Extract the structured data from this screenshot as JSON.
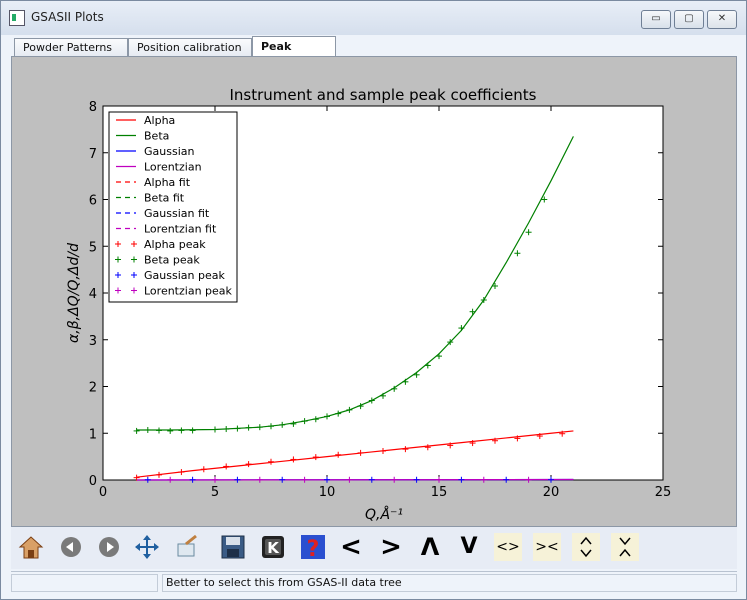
{
  "window": {
    "title": "GSASII Plots",
    "buttons": {
      "minimize": "▭",
      "maximize": "▢",
      "close": "✕"
    }
  },
  "tabs": [
    {
      "label": "Powder Patterns",
      "active": false
    },
    {
      "label": "Position calibration",
      "active": false
    },
    {
      "label": "Peak Widths",
      "active": true
    }
  ],
  "toolbar": {
    "icons": [
      "home-icon",
      "back-icon",
      "forward-icon",
      "pan-icon",
      "zoom-icon",
      "save-icon",
      "k-icon",
      "help-icon",
      "left-arrow-icon",
      "right-arrow-icon",
      "up-arrow-icon",
      "down-arrow-icon",
      "horizontal-spread-icon",
      "horizontal-compress-icon",
      "vertical-spread-icon",
      "vertical-compress-icon"
    ],
    "labels": {
      "left": "<",
      "right": ">",
      "up": "Λ",
      "down": "V",
      "hspread": "<>",
      "hcomp": "><",
      "help": "?"
    }
  },
  "status": {
    "message": "Better to select this from GSAS-II data tree"
  },
  "chart_data": {
    "type": "line",
    "title": "Instrument and sample peak coefficients",
    "xlabel": "Q,Å⁻¹",
    "ylabel": "α,β,ΔQ/Q,Δd/d",
    "xlim": [
      0,
      25
    ],
    "ylim": [
      0,
      8
    ],
    "xticks": [
      0,
      5,
      10,
      15,
      20,
      25
    ],
    "yticks": [
      0,
      1,
      2,
      3,
      4,
      5,
      6,
      7,
      8
    ],
    "legend_position": "top-left",
    "legend": [
      {
        "label": "Alpha",
        "style": "solid",
        "color": "#ff0000"
      },
      {
        "label": "Beta",
        "style": "solid",
        "color": "#008000"
      },
      {
        "label": "Gaussian",
        "style": "solid",
        "color": "#0000ff"
      },
      {
        "label": "Lorentzian",
        "style": "solid",
        "color": "#bf00bf"
      },
      {
        "label": "Alpha fit",
        "style": "dashed",
        "color": "#ff0000"
      },
      {
        "label": "Beta fit",
        "style": "dashed",
        "color": "#008000"
      },
      {
        "label": "Gaussian fit",
        "style": "dashed",
        "color": "#0000ff"
      },
      {
        "label": "Lorentzian fit",
        "style": "dashed",
        "color": "#bf00bf"
      },
      {
        "label": "Alpha peak",
        "style": "marker",
        "color": "#ff0000"
      },
      {
        "label": "Beta peak",
        "style": "marker",
        "color": "#008000"
      },
      {
        "label": "Gaussian peak",
        "style": "marker",
        "color": "#0000ff"
      },
      {
        "label": "Lorentzian peak",
        "style": "marker",
        "color": "#bf00bf"
      }
    ],
    "series": [
      {
        "name": "Alpha",
        "kind": "line",
        "color": "#ff0000",
        "x": [
          1.5,
          4,
          6,
          8,
          10,
          12,
          14,
          16,
          18,
          20,
          21
        ],
        "y": [
          0.06,
          0.2,
          0.3,
          0.4,
          0.5,
          0.6,
          0.7,
          0.8,
          0.9,
          1.0,
          1.05
        ]
      },
      {
        "name": "Beta",
        "kind": "line",
        "color": "#008000",
        "x": [
          1.5,
          3,
          5,
          7,
          8,
          9,
          10,
          11,
          12,
          13,
          14,
          15,
          16,
          17,
          18,
          19,
          20,
          21
        ],
        "y": [
          1.07,
          1.07,
          1.08,
          1.13,
          1.18,
          1.26,
          1.36,
          1.5,
          1.7,
          1.97,
          2.3,
          2.7,
          3.2,
          3.85,
          4.65,
          5.5,
          6.4,
          7.35
        ]
      },
      {
        "name": "Gaussian",
        "kind": "line",
        "color": "#0000ff",
        "x": [
          1.5,
          21
        ],
        "y": [
          0.0,
          0.01
        ]
      },
      {
        "name": "Lorentzian",
        "kind": "line",
        "color": "#bf00bf",
        "x": [
          1.5,
          21
        ],
        "y": [
          0.0,
          0.01
        ]
      },
      {
        "name": "Beta peak",
        "kind": "marker",
        "color": "#008000",
        "x": [
          1.5,
          2,
          2.5,
          3,
          3.5,
          4,
          5,
          5.5,
          6,
          6.5,
          7,
          7.5,
          8,
          8.5,
          9,
          9.5,
          10,
          10.5,
          11,
          11.5,
          12,
          12.5,
          13,
          13.5,
          14,
          14.5,
          15,
          15.5,
          16,
          16.5,
          17,
          17.5,
          18.5,
          19,
          19.7
        ],
        "y": [
          1.05,
          1.07,
          1.06,
          1.05,
          1.06,
          1.06,
          1.08,
          1.09,
          1.1,
          1.12,
          1.13,
          1.15,
          1.18,
          1.2,
          1.26,
          1.3,
          1.36,
          1.42,
          1.5,
          1.58,
          1.7,
          1.8,
          1.95,
          2.1,
          2.25,
          2.45,
          2.65,
          2.95,
          3.25,
          3.6,
          3.85,
          4.15,
          4.85,
          5.3,
          6.0
        ]
      },
      {
        "name": "Alpha peak",
        "kind": "marker",
        "color": "#ff0000",
        "x": [
          1.5,
          2.5,
          3.5,
          4.5,
          5.5,
          6.5,
          7.5,
          8.5,
          9.5,
          10.5,
          11.5,
          12.5,
          13.5,
          14.5,
          15.5,
          16.5,
          17.5,
          18.5,
          19.5,
          20.5
        ],
        "y": [
          0.05,
          0.11,
          0.17,
          0.23,
          0.29,
          0.34,
          0.39,
          0.44,
          0.49,
          0.54,
          0.58,
          0.62,
          0.66,
          0.7,
          0.74,
          0.79,
          0.84,
          0.89,
          0.94,
          0.99
        ]
      },
      {
        "name": "Gaussian peak",
        "kind": "marker",
        "color": "#0000ff",
        "x": [
          2,
          4,
          6,
          8,
          10,
          12,
          14,
          16,
          18,
          20
        ],
        "y": [
          0.005,
          0.005,
          0.005,
          0.005,
          0.005,
          0.005,
          0.005,
          0.005,
          0.005,
          0.005
        ]
      },
      {
        "name": "Lorentzian peak",
        "kind": "marker",
        "color": "#bf00bf",
        "x": [
          3,
          5,
          7,
          9,
          11,
          13,
          15,
          17,
          19
        ],
        "y": [
          0.005,
          0.005,
          0.005,
          0.005,
          0.005,
          0.005,
          0.005,
          0.005,
          0.005
        ]
      }
    ]
  }
}
